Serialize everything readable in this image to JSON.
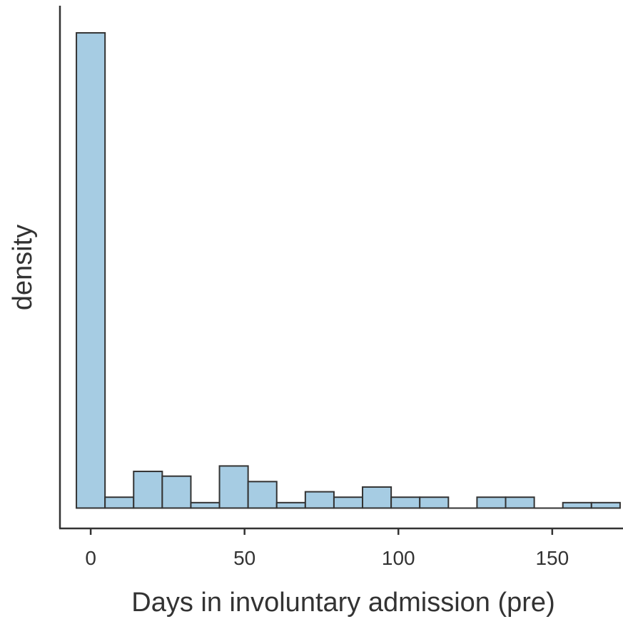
{
  "chart_data": {
    "type": "bar",
    "subtype": "histogram",
    "xlabel": "Days in involuntary admission (pre)",
    "ylabel": "density",
    "xlim": [
      -10,
      173
    ],
    "x_ticks": [
      0,
      50,
      100,
      150
    ],
    "y_ticks_shown": false,
    "grid": false,
    "legend": "none",
    "bin_width": 9.3,
    "bins": [
      {
        "start": -4.65,
        "end": 4.65,
        "count": 35
      },
      {
        "start": 4.65,
        "end": 13.95,
        "count": 0.8
      },
      {
        "start": 13.95,
        "end": 23.25,
        "count": 2.7
      },
      {
        "start": 23.25,
        "end": 32.55,
        "count": 2.35
      },
      {
        "start": 32.55,
        "end": 41.85,
        "count": 0.4
      },
      {
        "start": 41.85,
        "end": 51.15,
        "count": 3.1
      },
      {
        "start": 51.15,
        "end": 60.45,
        "count": 1.95
      },
      {
        "start": 60.45,
        "end": 69.75,
        "count": 0.4
      },
      {
        "start": 69.75,
        "end": 79.05,
        "count": 1.2
      },
      {
        "start": 79.05,
        "end": 88.35,
        "count": 0.8
      },
      {
        "start": 88.35,
        "end": 97.65,
        "count": 1.55
      },
      {
        "start": 97.65,
        "end": 106.95,
        "count": 0.8
      },
      {
        "start": 106.95,
        "end": 116.25,
        "count": 0.8
      },
      {
        "start": 116.25,
        "end": 125.55,
        "count": 0
      },
      {
        "start": 125.55,
        "end": 134.85,
        "count": 0.8
      },
      {
        "start": 134.85,
        "end": 144.15,
        "count": 0.8
      },
      {
        "start": 144.15,
        "end": 153.45,
        "count": 0
      },
      {
        "start": 153.45,
        "end": 162.75,
        "count": 0.4
      },
      {
        "start": 162.75,
        "end": 172.05,
        "count": 0.4
      }
    ],
    "ylim": [
      -1.5,
      37
    ],
    "colors": {
      "bar_fill": "#A6CCE3",
      "bar_stroke": "#333333",
      "axis": "#333333",
      "text": "#333333"
    }
  }
}
